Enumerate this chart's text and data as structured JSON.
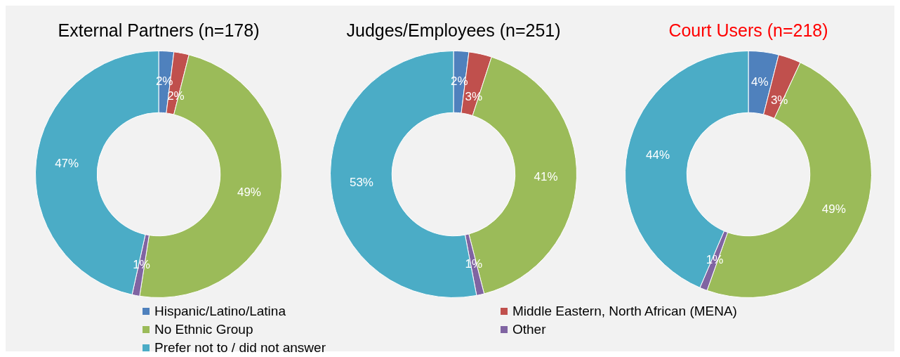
{
  "chart_data": [
    {
      "type": "donut",
      "title": "External Partners (n=178)",
      "categories": [
        "Hispanic/Latino/Latina",
        "Middle Eastern, North African (MENA)",
        "No Ethnic Group",
        "Other",
        "Prefer not to / did not answer"
      ],
      "values": [
        2,
        2,
        49,
        1,
        47
      ],
      "colors": [
        "#4f81bd",
        "#c0504d",
        "#9bbb59",
        "#8064a2",
        "#4bacc6"
      ],
      "value_labels": [
        "2%",
        "2%",
        "49%",
        "1%",
        "47%"
      ],
      "legend": "bottom"
    },
    {
      "type": "donut",
      "title": "Judges/Employees (n=251)",
      "values": [
        2,
        3,
        41,
        1,
        53
      ],
      "colors": [
        "#4f81bd",
        "#c0504d",
        "#9bbb59",
        "#8064a2",
        "#4bacc6"
      ],
      "value_labels": [
        "2%",
        "3%",
        "41%",
        "1%",
        "53%"
      ]
    },
    {
      "type": "donut",
      "title": "Court Users (n=218)",
      "values": [
        4,
        3,
        49,
        1,
        44
      ],
      "colors": [
        "#4f81bd",
        "#c0504d",
        "#9bbb59",
        "#8064a2",
        "#4bacc6"
      ],
      "value_labels": [
        "4%",
        "3%",
        "49%",
        "1%",
        "44%"
      ]
    }
  ]
}
